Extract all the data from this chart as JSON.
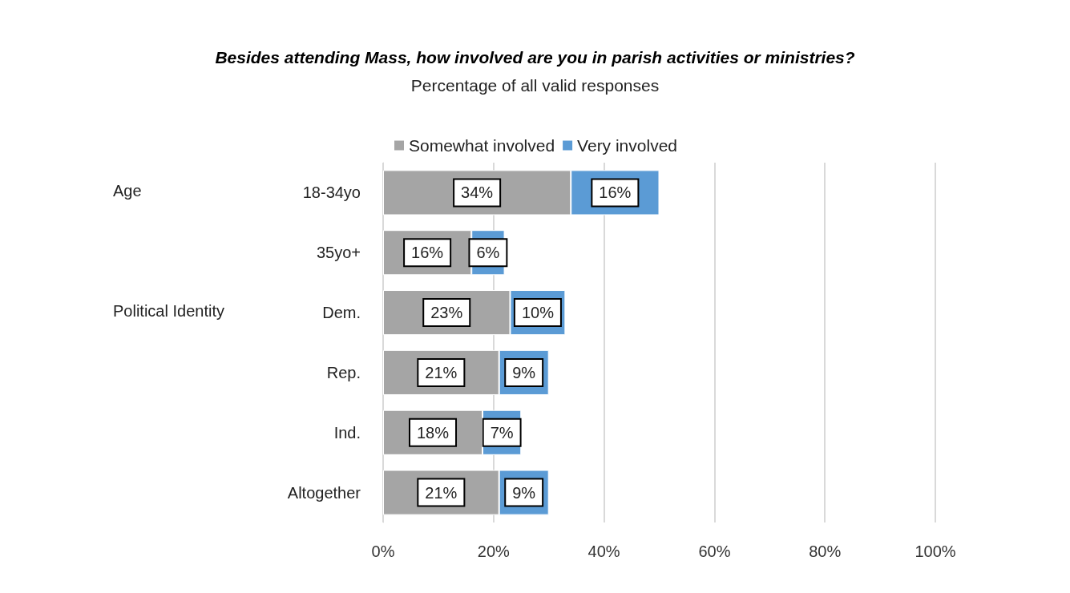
{
  "chart_data": {
    "type": "bar",
    "orientation": "horizontal",
    "stacked": true,
    "title": "Besides attending Mass, how involved are you in parish activities or ministries?",
    "subtitle": "Percentage of all valid responses",
    "categories": [
      "18-34yo",
      "35yo+",
      "Dem.",
      "Rep.",
      "Ind.",
      "Altogether"
    ],
    "series": [
      {
        "name": "Somewhat involved",
        "color": "#a5a5a5",
        "values": [
          34,
          16,
          23,
          21,
          18,
          21
        ],
        "value_labels": [
          "34%",
          "16%",
          "23%",
          "21%",
          "18%",
          "21%"
        ]
      },
      {
        "name": "Very involved",
        "color": "#5b9bd5",
        "values": [
          16,
          6,
          10,
          9,
          7,
          9
        ],
        "value_labels": [
          "16%",
          "6%",
          "10%",
          "9%",
          "7%",
          "9%"
        ]
      }
    ],
    "xlim": [
      0,
      100
    ],
    "xticks": [
      {
        "value": 0,
        "label": "0%"
      },
      {
        "value": 20,
        "label": "20%"
      },
      {
        "value": 40,
        "label": "40%"
      },
      {
        "value": 60,
        "label": "60%"
      },
      {
        "value": 80,
        "label": "80%"
      },
      {
        "value": 100,
        "label": "100%"
      }
    ],
    "grid": "x",
    "legend": "top",
    "annotations": [
      "Age",
      "Political Identity"
    ]
  }
}
